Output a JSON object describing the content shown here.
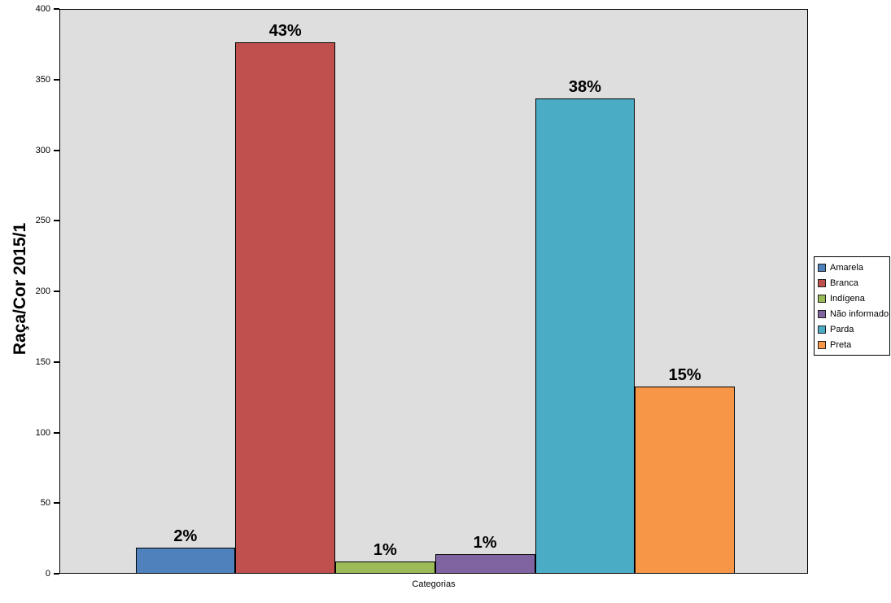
{
  "chart_data": {
    "type": "bar",
    "categories": [
      "Amarela",
      "Branca",
      "Indígena",
      "Não informado",
      "Parda",
      "Preta"
    ],
    "values": [
      18,
      376,
      8,
      13,
      336,
      132
    ],
    "bar_labels": [
      "2%",
      "43%",
      "1%",
      "1%",
      "38%",
      "15%"
    ],
    "colors": [
      "#4F81BD",
      "#C0504D",
      "#9BBB59",
      "#8064A2",
      "#4BACC6",
      "#F79646"
    ],
    "title": "",
    "ylabel": "Raça/Cor 2015/1",
    "xlabel": "Categorias",
    "ylim": [
      0,
      400
    ],
    "yticks": [
      0,
      50,
      100,
      150,
      200,
      250,
      300,
      350,
      400
    ],
    "grid": false,
    "legend_position": "right",
    "plot_background": "#DEDEDE",
    "bar_border_color": "#000000"
  }
}
